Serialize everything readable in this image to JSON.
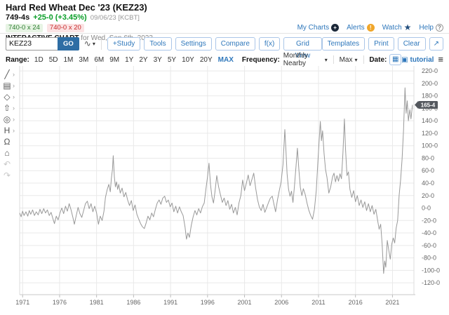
{
  "header": {
    "title": "Hard Red Wheat Dec '23 (KEZ23)",
    "last_price": "749-4s",
    "change": "+25-0 (+3.45%)",
    "date_exchange": "09/06/23 [KCBT]",
    "bid": "740-0 x 24",
    "ask": "740-0 x 20",
    "chart_label": "INTERACTIVE CHART",
    "chart_date": "for Wed, Sep 6th, 2023",
    "links": {
      "my_charts": "My Charts",
      "alerts": "Alerts",
      "watch": "Watch",
      "help": "Help"
    },
    "link_icons": {
      "my_charts": "+",
      "alerts": "!",
      "watch": "★",
      "help": "?"
    }
  },
  "toolbar": {
    "symbol_value": "KEZ23",
    "go_label": "GO",
    "linetype_icon": "∿",
    "buttons": [
      "+Study",
      "Tools",
      "Settings",
      "Compare",
      "f(x)",
      "Grid View"
    ],
    "right_buttons": [
      "Templates",
      "Print",
      "Clear"
    ],
    "expand_icon": "↗"
  },
  "range_bar": {
    "label": "Range:",
    "options": [
      "1D",
      "5D",
      "1M",
      "3M",
      "6M",
      "9M",
      "1Y",
      "2Y",
      "3Y",
      "5Y",
      "10Y",
      "20Y",
      "MAX"
    ],
    "active_option": "MAX",
    "frequency_label": "Frequency:",
    "frequency_value": "Monthly Nearby",
    "span_value": "Max",
    "date_label": "Date:",
    "calendar_icon": "▦",
    "tutorial_label": "tutorial",
    "tutorial_icon": "▣",
    "menu_icon": "≡"
  },
  "palette": [
    {
      "name": "draw-line-tool",
      "glyph": "╱",
      "chevron": true,
      "disabled": false
    },
    {
      "name": "annotation-tool",
      "glyph": "▤",
      "chevron": true,
      "disabled": false
    },
    {
      "name": "shape-tool",
      "glyph": "◇",
      "chevron": true,
      "disabled": false
    },
    {
      "name": "arrow-tool",
      "glyph": "⇧",
      "chevron": true,
      "disabled": false
    },
    {
      "name": "target-tool",
      "glyph": "◎",
      "chevron": true,
      "disabled": false
    },
    {
      "name": "measure-tool",
      "glyph": "H",
      "chevron": true,
      "disabled": false
    },
    {
      "name": "magnet-tool",
      "glyph": "Ω",
      "chevron": false,
      "disabled": false
    },
    {
      "name": "lock-tool",
      "glyph": "⌂",
      "chevron": false,
      "disabled": false
    },
    {
      "name": "undo-button",
      "glyph": "↶",
      "chevron": false,
      "disabled": true
    },
    {
      "name": "redo-button",
      "glyph": "↷",
      "chevron": false,
      "disabled": true
    }
  ],
  "colors": {
    "accent_blue": "#2e77bb",
    "go_blue": "#2e6da4",
    "change_green": "#0a9e28",
    "bid_green": "#2e7d32",
    "ask_red": "#c62828",
    "line": "#999999",
    "grid": "#e9e9e9",
    "axis_text": "#666666",
    "badge_bg": "#54585e"
  },
  "chart_data": {
    "type": "line",
    "title": "Hard Red Wheat Dec '23 (KEZ23) — Monthly Nearby — MAX range",
    "xlabel": "",
    "ylabel": "",
    "grid": true,
    "legend": "none",
    "xlim": [
      1970.6,
      2023.9
    ],
    "ylim": [
      -139,
      228
    ],
    "x_ticks": [
      1971,
      1976,
      1981,
      1986,
      1991,
      1996,
      2001,
      2006,
      2011,
      2016,
      2021
    ],
    "x_tick_labels": [
      "1971",
      "1976",
      "1981",
      "1986",
      "1991",
      "1996",
      "2001",
      "2006",
      "2011",
      "2016",
      "2021"
    ],
    "y_ticks": [
      220,
      200,
      180,
      160,
      140,
      120,
      100,
      80,
      60,
      40,
      20,
      0,
      -20,
      -40,
      -60,
      -80,
      -100,
      -120
    ],
    "y_tick_labels": [
      "220-0",
      "200-0",
      "180-0",
      "160-0",
      "140-0",
      "120-0",
      "100-0",
      "80-0",
      "60-0",
      "40-0",
      "20-0",
      "0-0",
      "-20-0",
      "-40-0",
      "-60-0",
      "-80-0",
      "-100-0",
      "-120-0"
    ],
    "last_price_value": 165.5,
    "last_price_label": "165-4",
    "series": [
      {
        "name": "KEZ23 Monthly Nearby",
        "points": [
          [
            1970.6,
            -8
          ],
          [
            1970.8,
            -14
          ],
          [
            1971.0,
            -5
          ],
          [
            1971.2,
            -12
          ],
          [
            1971.45,
            -6
          ],
          [
            1971.7,
            -13
          ],
          [
            1971.9,
            -4
          ],
          [
            1972.1,
            -10
          ],
          [
            1972.35,
            -3
          ],
          [
            1972.6,
            -12
          ],
          [
            1972.85,
            -6
          ],
          [
            1973.1,
            -11
          ],
          [
            1973.35,
            -2
          ],
          [
            1973.6,
            -9
          ],
          [
            1973.85,
            -1
          ],
          [
            1974.1,
            -8
          ],
          [
            1974.35,
            -3
          ],
          [
            1974.6,
            -12
          ],
          [
            1974.85,
            -7
          ],
          [
            1975.1,
            -17
          ],
          [
            1975.3,
            -25
          ],
          [
            1975.55,
            -13
          ],
          [
            1975.8,
            -19
          ],
          [
            1976.05,
            -8
          ],
          [
            1976.3,
            0
          ],
          [
            1976.55,
            -9
          ],
          [
            1976.8,
            3
          ],
          [
            1977.05,
            -5
          ],
          [
            1977.3,
            7
          ],
          [
            1977.55,
            -3
          ],
          [
            1977.8,
            -15
          ],
          [
            1978.0,
            -26
          ],
          [
            1978.25,
            -12
          ],
          [
            1978.5,
            1
          ],
          [
            1978.75,
            -9
          ],
          [
            1979.0,
            -15
          ],
          [
            1979.25,
            -4
          ],
          [
            1979.5,
            7
          ],
          [
            1979.75,
            11
          ],
          [
            1980.0,
            -1
          ],
          [
            1980.25,
            7
          ],
          [
            1980.5,
            -6
          ],
          [
            1980.75,
            3
          ],
          [
            1981.0,
            -8
          ],
          [
            1981.25,
            -26
          ],
          [
            1981.5,
            -13
          ],
          [
            1981.75,
            -20
          ],
          [
            1982.0,
            -5
          ],
          [
            1982.2,
            17
          ],
          [
            1982.45,
            30
          ],
          [
            1982.65,
            38
          ],
          [
            1982.85,
            26
          ],
          [
            1983.0,
            47
          ],
          [
            1983.15,
            62
          ],
          [
            1983.25,
            84
          ],
          [
            1983.4,
            50
          ],
          [
            1983.55,
            34
          ],
          [
            1983.7,
            42
          ],
          [
            1983.85,
            30
          ],
          [
            1984.0,
            38
          ],
          [
            1984.2,
            24
          ],
          [
            1984.45,
            32
          ],
          [
            1984.7,
            18
          ],
          [
            1984.95,
            25
          ],
          [
            1985.2,
            13
          ],
          [
            1985.45,
            4
          ],
          [
            1985.7,
            12
          ],
          [
            1985.95,
            -4
          ],
          [
            1986.2,
            5
          ],
          [
            1986.45,
            -10
          ],
          [
            1986.7,
            -18
          ],
          [
            1986.95,
            -25
          ],
          [
            1987.2,
            -30
          ],
          [
            1987.45,
            -33
          ],
          [
            1987.7,
            -24
          ],
          [
            1987.95,
            -13
          ],
          [
            1988.2,
            -19
          ],
          [
            1988.45,
            -8
          ],
          [
            1988.7,
            -14
          ],
          [
            1988.95,
            -2
          ],
          [
            1989.2,
            8
          ],
          [
            1989.45,
            13
          ],
          [
            1989.7,
            6
          ],
          [
            1989.95,
            16
          ],
          [
            1990.2,
            19
          ],
          [
            1990.45,
            9
          ],
          [
            1990.7,
            13
          ],
          [
            1990.95,
            2
          ],
          [
            1991.2,
            8
          ],
          [
            1991.45,
            -6
          ],
          [
            1991.7,
            3
          ],
          [
            1991.95,
            -8
          ],
          [
            1992.2,
            2
          ],
          [
            1992.45,
            -6
          ],
          [
            1992.7,
            -12
          ],
          [
            1992.95,
            -30
          ],
          [
            1993.15,
            -50
          ],
          [
            1993.35,
            -40
          ],
          [
            1993.55,
            -47
          ],
          [
            1993.8,
            -28
          ],
          [
            1994.05,
            -14
          ],
          [
            1994.3,
            -4
          ],
          [
            1994.55,
            -11
          ],
          [
            1994.8,
            -1
          ],
          [
            1995.05,
            -8
          ],
          [
            1995.3,
            2
          ],
          [
            1995.55,
            8
          ],
          [
            1995.8,
            32
          ],
          [
            1996.0,
            50
          ],
          [
            1996.2,
            72
          ],
          [
            1996.4,
            38
          ],
          [
            1996.6,
            18
          ],
          [
            1996.8,
            8
          ],
          [
            1997.0,
            26
          ],
          [
            1997.25,
            52
          ],
          [
            1997.5,
            34
          ],
          [
            1997.75,
            21
          ],
          [
            1998.0,
            9
          ],
          [
            1998.25,
            16
          ],
          [
            1998.5,
            4
          ],
          [
            1998.75,
            12
          ],
          [
            1999.0,
            -2
          ],
          [
            1999.25,
            6
          ],
          [
            1999.5,
            -8
          ],
          [
            1999.75,
            1
          ],
          [
            2000.0,
            -11
          ],
          [
            2000.25,
            8
          ],
          [
            2000.5,
            20
          ],
          [
            2000.75,
            45
          ],
          [
            2001.0,
            28
          ],
          [
            2001.25,
            40
          ],
          [
            2001.5,
            53
          ],
          [
            2001.75,
            36
          ],
          [
            2002.0,
            46
          ],
          [
            2002.25,
            56
          ],
          [
            2002.5,
            32
          ],
          [
            2002.75,
            14
          ],
          [
            2003.0,
            2
          ],
          [
            2003.25,
            -4
          ],
          [
            2003.5,
            6
          ],
          [
            2003.75,
            -7
          ],
          [
            2004.0,
            1
          ],
          [
            2004.25,
            9
          ],
          [
            2004.5,
            16
          ],
          [
            2004.75,
            19
          ],
          [
            2005.0,
            5
          ],
          [
            2005.2,
            -6
          ],
          [
            2005.45,
            13
          ],
          [
            2005.7,
            28
          ],
          [
            2005.95,
            42
          ],
          [
            2006.2,
            70
          ],
          [
            2006.45,
            126
          ],
          [
            2006.6,
            92
          ],
          [
            2006.75,
            55
          ],
          [
            2006.95,
            30
          ],
          [
            2007.15,
            19
          ],
          [
            2007.35,
            27
          ],
          [
            2007.55,
            9
          ],
          [
            2007.75,
            35
          ],
          [
            2007.95,
            65
          ],
          [
            2008.15,
            96
          ],
          [
            2008.35,
            62
          ],
          [
            2008.55,
            33
          ],
          [
            2008.75,
            20
          ],
          [
            2008.95,
            31
          ],
          [
            2009.2,
            22
          ],
          [
            2009.45,
            8
          ],
          [
            2009.7,
            -4
          ],
          [
            2009.95,
            -12
          ],
          [
            2010.2,
            -18
          ],
          [
            2010.45,
            -2
          ],
          [
            2010.7,
            28
          ],
          [
            2010.9,
            70
          ],
          [
            2011.1,
            110
          ],
          [
            2011.25,
            139
          ],
          [
            2011.4,
            108
          ],
          [
            2011.55,
            124
          ],
          [
            2011.75,
            88
          ],
          [
            2011.95,
            62
          ],
          [
            2012.15,
            49
          ],
          [
            2012.4,
            24
          ],
          [
            2012.65,
            34
          ],
          [
            2012.9,
            50
          ],
          [
            2013.1,
            56
          ],
          [
            2013.3,
            42
          ],
          [
            2013.5,
            52
          ],
          [
            2013.7,
            43
          ],
          [
            2013.9,
            55
          ],
          [
            2014.1,
            47
          ],
          [
            2014.3,
            88
          ],
          [
            2014.5,
            143
          ],
          [
            2014.65,
            95
          ],
          [
            2014.85,
            52
          ],
          [
            2015.05,
            58
          ],
          [
            2015.25,
            30
          ],
          [
            2015.5,
            17
          ],
          [
            2015.75,
            28
          ],
          [
            2016.0,
            10
          ],
          [
            2016.25,
            20
          ],
          [
            2016.5,
            4
          ],
          [
            2016.75,
            13
          ],
          [
            2017.0,
            1
          ],
          [
            2017.25,
            10
          ],
          [
            2017.5,
            -4
          ],
          [
            2017.75,
            7
          ],
          [
            2018.0,
            -6
          ],
          [
            2018.25,
            4
          ],
          [
            2018.5,
            -10
          ],
          [
            2018.75,
            -2
          ],
          [
            2019.0,
            -20
          ],
          [
            2019.2,
            -34
          ],
          [
            2019.4,
            -26
          ],
          [
            2019.6,
            -58
          ],
          [
            2019.8,
            -105
          ],
          [
            2019.95,
            -85
          ],
          [
            2020.1,
            -95
          ],
          [
            2020.3,
            -52
          ],
          [
            2020.5,
            -68
          ],
          [
            2020.7,
            -82
          ],
          [
            2020.9,
            -58
          ],
          [
            2021.1,
            -48
          ],
          [
            2021.3,
            -56
          ],
          [
            2021.5,
            -32
          ],
          [
            2021.7,
            -20
          ],
          [
            2021.9,
            20
          ],
          [
            2022.1,
            45
          ],
          [
            2022.3,
            78
          ],
          [
            2022.5,
            125
          ],
          [
            2022.7,
            193
          ],
          [
            2022.85,
            152
          ],
          [
            2023.0,
            172
          ],
          [
            2023.15,
            140
          ],
          [
            2023.35,
            158
          ],
          [
            2023.5,
            143
          ],
          [
            2023.7,
            165.5
          ]
        ]
      }
    ]
  }
}
